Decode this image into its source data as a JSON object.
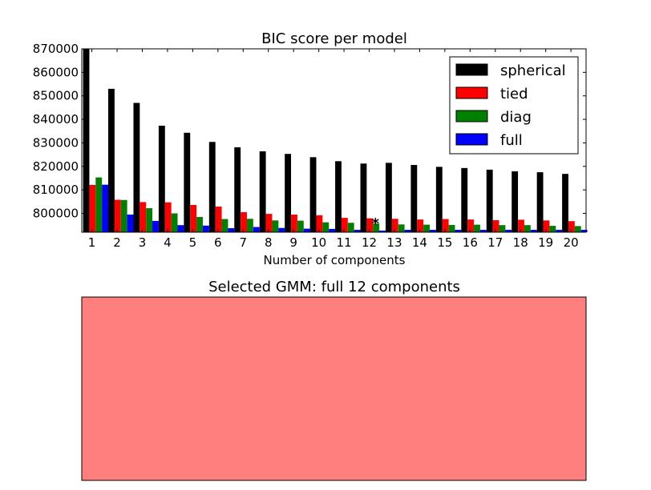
{
  "chart_data": [
    {
      "type": "bar",
      "title": "BIC score per model",
      "xlabel": "Number of components",
      "ylabel": "",
      "ylim": [
        792000,
        870000
      ],
      "yticks": [
        800000,
        810000,
        820000,
        830000,
        840000,
        850000,
        860000,
        870000
      ],
      "categories": [
        "1",
        "2",
        "3",
        "4",
        "5",
        "6",
        "7",
        "8",
        "9",
        "10",
        "11",
        "12",
        "13",
        "14",
        "15",
        "16",
        "17",
        "18",
        "19",
        "20"
      ],
      "legend_position": "top-right",
      "grid": false,
      "annotation": {
        "text": "*",
        "category": "12"
      },
      "series": [
        {
          "name": "spherical",
          "color": "#000000",
          "values": [
            870000,
            853000,
            847000,
            837300,
            834300,
            830400,
            828100,
            826400,
            825300,
            823900,
            822200,
            821200,
            821500,
            820600,
            819800,
            819300,
            818600,
            817900,
            817500,
            816800
          ]
        },
        {
          "name": "tied",
          "color": "#ff0000",
          "values": [
            812100,
            805800,
            804800,
            804700,
            803600,
            802900,
            800500,
            799800,
            799500,
            799200,
            798100,
            797900,
            797700,
            797400,
            797600,
            797400,
            797100,
            797300,
            797000,
            796700
          ]
        },
        {
          "name": "diag",
          "color": "#008000",
          "values": [
            815300,
            805700,
            802200,
            800000,
            798500,
            797600,
            797700,
            797000,
            796900,
            796200,
            796000,
            795700,
            795300,
            795200,
            795100,
            795200,
            795000,
            795000,
            794700,
            794600
          ]
        },
        {
          "name": "full",
          "color": "#0000ff",
          "values": [
            812200,
            799500,
            796800,
            795000,
            794800,
            793700,
            794200,
            793800,
            793500,
            793400,
            793000,
            792700,
            793000,
            793000,
            793000,
            793000,
            793000,
            793000,
            793000,
            793000
          ]
        }
      ]
    },
    {
      "type": "other",
      "title": "Selected GMM: full 12 components",
      "fill_color": "#ff7f7f"
    }
  ]
}
